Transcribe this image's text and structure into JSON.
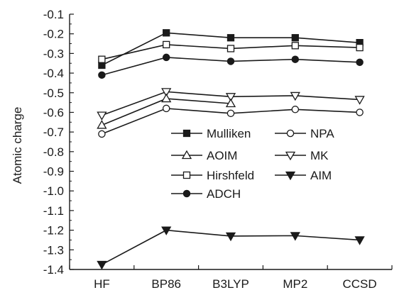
{
  "chart_data": {
    "type": "line",
    "title": "",
    "xlabel": "",
    "ylabel": "Atomic charge",
    "categories": [
      "HF",
      "BP86",
      "B3LYP",
      "MP2",
      "CCSD"
    ],
    "ylim": [
      -1.4,
      -0.1
    ],
    "yticks": [
      "-0.1",
      "-0.2",
      "-0.3",
      "-0.4",
      "-0.5",
      "-0.6",
      "-0.7",
      "-0.8",
      "-0.9",
      "-1.0",
      "-1.1",
      "-1.2",
      "-1.3",
      "-1.4"
    ],
    "grid": false,
    "legend_placement": "center",
    "series": [
      {
        "name": "Mulliken",
        "marker": "square-filled",
        "values": [
          -0.36,
          -0.195,
          -0.22,
          -0.22,
          -0.245
        ]
      },
      {
        "name": "Hirshfeld",
        "marker": "square-open",
        "values": [
          -0.33,
          -0.255,
          -0.275,
          -0.26,
          -0.27
        ]
      },
      {
        "name": "ADCH",
        "marker": "circle-filled",
        "values": [
          -0.41,
          -0.32,
          -0.34,
          -0.33,
          -0.345
        ]
      },
      {
        "name": "MK",
        "marker": "triangle-down-open",
        "values": [
          -0.615,
          -0.495,
          -0.52,
          -0.515,
          -0.535
        ]
      },
      {
        "name": "AOIM",
        "marker": "triangle-up-open",
        "values": [
          -0.665,
          -0.53,
          -0.555,
          null,
          null
        ]
      },
      {
        "name": "NPA",
        "marker": "circle-open",
        "values": [
          -0.71,
          -0.58,
          -0.605,
          -0.585,
          -0.6
        ]
      },
      {
        "name": "AIM",
        "marker": "triangle-down-filled",
        "values": [
          -1.375,
          -1.2,
          -1.23,
          -1.228,
          -1.25
        ]
      }
    ],
    "legend": [
      {
        "series": "Mulliken",
        "column": 0
      },
      {
        "series": "AOIM",
        "column": 0
      },
      {
        "series": "Hirshfeld",
        "column": 0
      },
      {
        "series": "ADCH",
        "column": 0
      },
      {
        "series": "NPA",
        "column": 1
      },
      {
        "series": "MK",
        "column": 1
      },
      {
        "series": "AIM",
        "column": 1
      }
    ]
  }
}
